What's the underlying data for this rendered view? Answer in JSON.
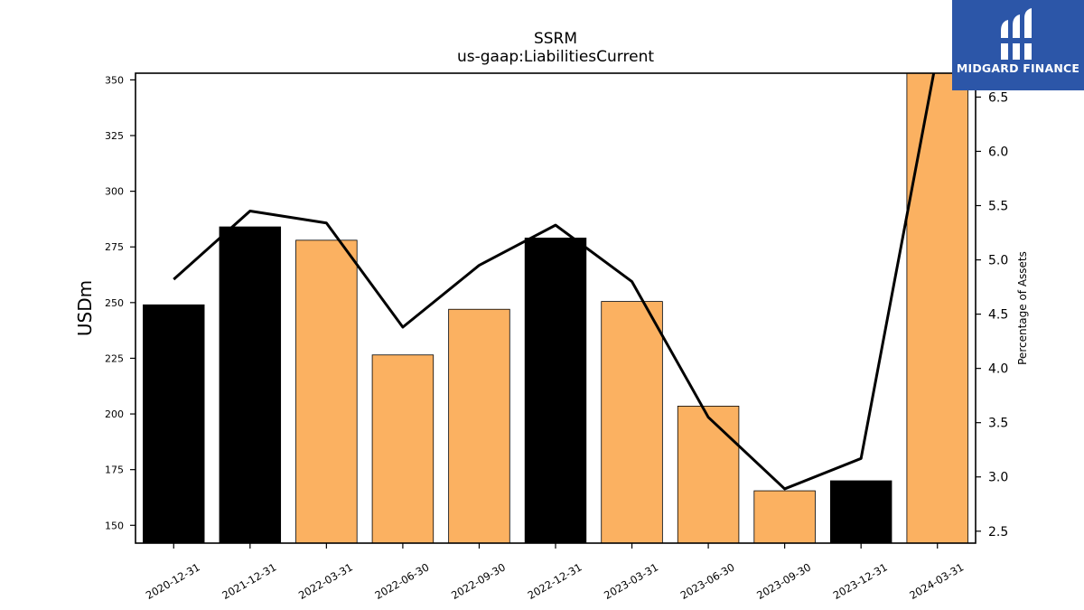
{
  "brand": {
    "name": "MIDGARD FINANCE",
    "bg_color": "#2c56a8"
  },
  "chart_data": {
    "type": "bar",
    "title": "SSRM",
    "subtitle": "us-gaap:LiabilitiesCurrent",
    "ylabel": "USDm",
    "y2label": "Percentage of Assets",
    "categories": [
      "2020-12-31",
      "2021-12-31",
      "2022-03-31",
      "2022-06-30",
      "2022-09-30",
      "2022-12-31",
      "2023-03-31",
      "2023-06-30",
      "2023-09-30",
      "2023-12-31",
      "2024-03-31"
    ],
    "ylim": [
      142,
      353
    ],
    "y2lim": [
      2.39,
      6.72
    ],
    "yticks": [
      150,
      175,
      200,
      225,
      250,
      275,
      300,
      325,
      350
    ],
    "y2ticks": [
      "2.5",
      "3.0",
      "3.5",
      "4.0",
      "4.5",
      "5.0",
      "5.5",
      "6.0",
      "6.5"
    ],
    "series": [
      {
        "kind": "bar",
        "values": [
          249,
          284,
          278,
          226.5,
          247,
          279,
          250.5,
          203.5,
          165.5,
          170,
          360
        ],
        "colors": [
          "#000000",
          "#000000",
          "#fbb161",
          "#fbb161",
          "#fbb161",
          "#000000",
          "#fbb161",
          "#fbb161",
          "#fbb161",
          "#000000",
          "#fbb161"
        ]
      },
      {
        "kind": "line",
        "axis": "right",
        "color": "#000000",
        "values": [
          4.82,
          5.45,
          5.34,
          4.38,
          4.95,
          5.32,
          4.8,
          3.55,
          2.89,
          3.17,
          6.9
        ]
      }
    ],
    "grid": false
  }
}
